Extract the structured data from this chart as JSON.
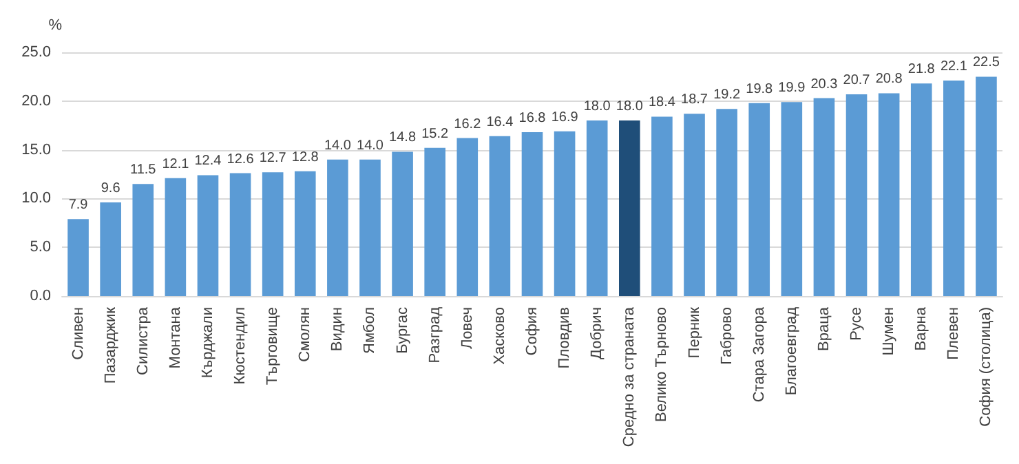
{
  "chart_data": {
    "type": "bar",
    "ylabel": "%",
    "categories": [
      "Сливен",
      "Пазарджик",
      "Силистра",
      "Монтана",
      "Кърджали",
      "Кюстендил",
      "Търговище",
      "Смолян",
      "Видин",
      "Ямбол",
      "Бургас",
      "Разград",
      "Ловеч",
      "Хасково",
      "София",
      "Пловдив",
      "Добрич",
      "Средно за страната",
      "Велико Търново",
      "Перник",
      "Габрово",
      "Стара Загора",
      "Благоевград",
      "Враца",
      "Русе",
      "Шумен",
      "Варна",
      "Плевен",
      "София (столица)"
    ],
    "values": [
      7.9,
      9.6,
      11.5,
      12.1,
      12.4,
      12.6,
      12.7,
      12.8,
      14.0,
      14.0,
      14.8,
      15.2,
      16.2,
      16.4,
      16.8,
      16.9,
      18.0,
      18.0,
      18.4,
      18.7,
      19.2,
      19.8,
      19.9,
      20.3,
      20.7,
      20.8,
      21.8,
      22.1,
      22.5
    ],
    "colors": [
      "#5b9bd5",
      "#5b9bd5",
      "#5b9bd5",
      "#5b9bd5",
      "#5b9bd5",
      "#5b9bd5",
      "#5b9bd5",
      "#5b9bd5",
      "#5b9bd5",
      "#5b9bd5",
      "#5b9bd5",
      "#5b9bd5",
      "#5b9bd5",
      "#5b9bd5",
      "#5b9bd5",
      "#5b9bd5",
      "#5b9bd5",
      "#1f4e79",
      "#5b9bd5",
      "#5b9bd5",
      "#5b9bd5",
      "#5b9bd5",
      "#5b9bd5",
      "#5b9bd5",
      "#5b9bd5",
      "#5b9bd5",
      "#5b9bd5",
      "#5b9bd5",
      "#5b9bd5"
    ],
    "value_labels": [
      "7.9",
      "9.6",
      "11.5",
      "12.1",
      "12.4",
      "12.6",
      "12.7",
      "12.8",
      "14.0",
      "14.0",
      "14.8",
      "15.2",
      "16.2",
      "16.4",
      "16.8",
      "16.9",
      "18.0",
      "18.0",
      "18.4",
      "18.7",
      "19.2",
      "19.8",
      "19.9",
      "20.3",
      "20.7",
      "20.8",
      "21.8",
      "22.1",
      "22.5"
    ],
    "ylim": [
      0,
      25
    ],
    "yticks": [
      {
        "value": 0,
        "label": "0.0"
      },
      {
        "value": 5,
        "label": "5.0"
      },
      {
        "value": 10,
        "label": "10.0"
      },
      {
        "value": 15,
        "label": "15.0"
      },
      {
        "value": 20,
        "label": "20.0"
      },
      {
        "value": 25,
        "label": "25.0"
      }
    ],
    "grid": "y"
  }
}
